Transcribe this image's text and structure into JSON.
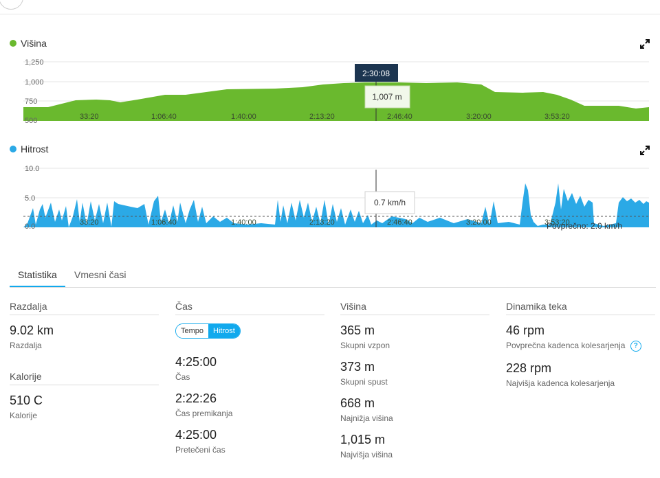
{
  "elevation": {
    "title": "Višina",
    "color": "#6ab92e",
    "y_ticks": [
      "1,250",
      "1,000",
      "750",
      "500"
    ],
    "x_ticks": [
      "33:20",
      "1:06:40",
      "1:40:00",
      "2:13:20",
      "2:46:40",
      "3:20:00",
      "3:53:20"
    ],
    "tooltip_time": "2:30:08",
    "tooltip_value": "1,007 m"
  },
  "speed": {
    "title": "Hitrost",
    "color": "#2ba9e6",
    "y_ticks": [
      "10.0",
      "5.0",
      "0.0"
    ],
    "x_ticks": [
      "33:20",
      "1:06:40",
      "1:40:00",
      "2:13:20",
      "2:46:40",
      "3:20:00",
      "3:53:20"
    ],
    "tooltip_value": "0.7 km/h",
    "average_label": "Povprečno: 2.0 km/h"
  },
  "tabs": [
    "Statistika",
    "Vmesni časi"
  ],
  "stats": {
    "distance": {
      "title": "Razdalja",
      "value": "9.02 km",
      "label": "Razdalja"
    },
    "calories": {
      "title": "Kalorije",
      "value": "510 C",
      "label": "Kalorije"
    },
    "time": {
      "title": "Čas",
      "toggle_left": "Tempo",
      "toggle_right": "Hitrost",
      "items": [
        {
          "value": "4:25:00",
          "label": "Čas"
        },
        {
          "value": "2:22:26",
          "label": "Čas premikanja"
        },
        {
          "value": "4:25:00",
          "label": "Pretečeni čas"
        }
      ]
    },
    "elevation": {
      "title": "Višina",
      "items": [
        {
          "value": "365 m",
          "label": "Skupni vzpon"
        },
        {
          "value": "373 m",
          "label": "Skupni spust"
        },
        {
          "value": "668 m",
          "label": "Najnižja višina"
        },
        {
          "value": "1,015 m",
          "label": "Najvišja višina"
        }
      ]
    },
    "dynamics": {
      "title": "Dinamika teka",
      "items": [
        {
          "value": "46 rpm",
          "label": "Povprečna kadenca kolesarjenja"
        },
        {
          "value": "228 rpm",
          "label": "Najvišja kadenca kolesarjenja"
        }
      ]
    }
  }
}
